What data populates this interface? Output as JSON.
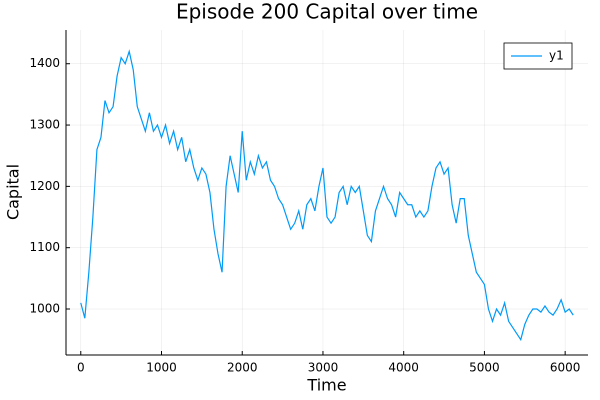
{
  "chart_data": {
    "type": "line",
    "title": "Episode 200 Capital over time",
    "x_label": "Time",
    "y_label": "Capital",
    "x": [
      0,
      50,
      100,
      150,
      200,
      250,
      300,
      350,
      400,
      450,
      500,
      550,
      600,
      650,
      700,
      750,
      800,
      850,
      900,
      950,
      1000,
      1050,
      1100,
      1150,
      1200,
      1250,
      1300,
      1350,
      1400,
      1450,
      1500,
      1550,
      1600,
      1650,
      1700,
      1750,
      1800,
      1850,
      1900,
      1950,
      2000,
      2050,
      2100,
      2150,
      2200,
      2250,
      2300,
      2350,
      2400,
      2450,
      2500,
      2550,
      2600,
      2650,
      2700,
      2750,
      2800,
      2850,
      2900,
      2950,
      3000,
      3050,
      3100,
      3150,
      3200,
      3250,
      3300,
      3350,
      3400,
      3450,
      3500,
      3550,
      3600,
      3650,
      3700,
      3750,
      3800,
      3850,
      3900,
      3950,
      4000,
      4050,
      4100,
      4150,
      4200,
      4250,
      4300,
      4350,
      4400,
      4450,
      4500,
      4550,
      4600,
      4650,
      4700,
      4750,
      4800,
      4850,
      4900,
      4950,
      5000,
      5050,
      5100,
      5150,
      5200,
      5250,
      5300,
      5350,
      5400,
      5450,
      5500,
      5550,
      5600,
      5650,
      5700,
      5750,
      5800,
      5850,
      5900,
      5950,
      6000,
      6050,
      6100
    ],
    "series": [
      {
        "name": "y1",
        "color": "#009af9",
        "values": [
          1010,
          985,
          1060,
          1150,
          1260,
          1280,
          1340,
          1320,
          1330,
          1380,
          1410,
          1400,
          1420,
          1390,
          1330,
          1310,
          1290,
          1320,
          1290,
          1300,
          1280,
          1300,
          1270,
          1290,
          1260,
          1280,
          1240,
          1260,
          1230,
          1210,
          1230,
          1220,
          1190,
          1130,
          1090,
          1060,
          1200,
          1250,
          1220,
          1190,
          1290,
          1210,
          1240,
          1220,
          1250,
          1230,
          1240,
          1210,
          1200,
          1180,
          1170,
          1150,
          1130,
          1140,
          1160,
          1130,
          1170,
          1180,
          1160,
          1200,
          1230,
          1150,
          1140,
          1150,
          1190,
          1200,
          1170,
          1200,
          1190,
          1200,
          1160,
          1120,
          1110,
          1160,
          1180,
          1200,
          1180,
          1170,
          1150,
          1190,
          1180,
          1170,
          1170,
          1150,
          1160,
          1150,
          1160,
          1200,
          1230,
          1240,
          1220,
          1230,
          1170,
          1140,
          1180,
          1180,
          1120,
          1090,
          1060,
          1050,
          1040,
          1000,
          980,
          1000,
          990,
          1010,
          980,
          970,
          960,
          950,
          975,
          990,
          1000,
          1000,
          995,
          1005,
          995,
          990,
          1000,
          1015,
          995,
          1000,
          990
        ]
      }
    ],
    "xlim": [
      -183,
      6283
    ],
    "ylim": [
      925,
      1455
    ],
    "xticks": [
      0,
      1000,
      2000,
      3000,
      4000,
      5000,
      6000
    ],
    "yticks": [
      1000,
      1100,
      1200,
      1300,
      1400
    ],
    "grid": true,
    "legend": "top-right"
  }
}
